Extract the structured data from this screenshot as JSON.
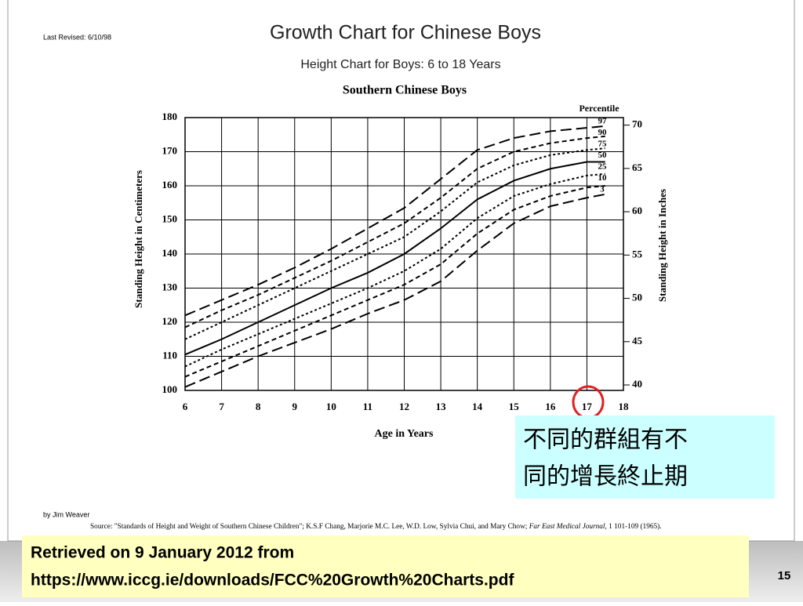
{
  "slide": {
    "revised": "Last Revised: 6/10/98",
    "author": "by Jim Weaver",
    "source_parts": [
      "Source: \"Standards of Height and Weight of Southern Chinese Children\"; K.S.F Chang, Marjorie M.C. Lee, W.D. Low, Sylvia Chui, and Mary Chow; ",
      "Far East Medical Journal,",
      " 1 101-109 (1965)."
    ],
    "callout": [
      "不同的群組有不",
      "同的增長終止期"
    ],
    "retrieved": [
      "Retrieved on 9 January 2012 from",
      "https://www.iccg.ie/downloads/FCC%20Growth%20Charts.pdf"
    ],
    "page_number": "15"
  },
  "chart_data": {
    "type": "line",
    "title": "Growth Chart for Chinese Boys",
    "subtitle": "Height Chart for Boys: 6 to 18 Years",
    "chart_title": "Southern Chinese Boys",
    "x_label": "Age in Years",
    "y_label": "Standing Height in Centimeters",
    "y2_label": "Standing Height in Inches",
    "legend_title": "Percentile",
    "x": [
      6,
      7,
      8,
      9,
      10,
      11,
      12,
      13,
      14,
      15,
      16,
      17,
      17.5
    ],
    "series": [
      {
        "name": "97",
        "color": "#000000",
        "dash": "14 6",
        "values": [
          122,
          126.5,
          131,
          136,
          141.5,
          147.5,
          153.5,
          162,
          170.5,
          174,
          176,
          177,
          177.5
        ]
      },
      {
        "name": "90",
        "color": "#000000",
        "dash": "6 4",
        "values": [
          118.5,
          123.5,
          128,
          133,
          138,
          143.5,
          149,
          156.5,
          165,
          170,
          172.5,
          174,
          174.5
        ]
      },
      {
        "name": "75",
        "color": "#000000",
        "dash": "3 3",
        "values": [
          115,
          120,
          125,
          130,
          135,
          140,
          145,
          152.5,
          161,
          166,
          169,
          170.5,
          171
        ]
      },
      {
        "name": "50",
        "color": "#000000",
        "dash": "none",
        "values": [
          110.5,
          115,
          120,
          125,
          130,
          134.5,
          140,
          147.5,
          156,
          161.5,
          165,
          167,
          167
        ]
      },
      {
        "name": "25",
        "color": "#000000",
        "dash": "3 3",
        "values": [
          107,
          112,
          116.5,
          121,
          125.5,
          130,
          135,
          141.5,
          150.5,
          157,
          160.5,
          163,
          163.5
        ]
      },
      {
        "name": "10",
        "color": "#000000",
        "dash": "6 4",
        "values": [
          104,
          108.5,
          113,
          117.5,
          122,
          126.5,
          131,
          137,
          146,
          153,
          157,
          159.5,
          160
        ]
      },
      {
        "name": "3",
        "color": "#000000",
        "dash": "14 6",
        "values": [
          101,
          105.5,
          110,
          114,
          118,
          122.5,
          126.5,
          132,
          141,
          149,
          154,
          156.5,
          157.5
        ]
      }
    ],
    "xlim": [
      6,
      18
    ],
    "xticks": [
      6,
      7,
      8,
      9,
      10,
      11,
      12,
      13,
      14,
      15,
      16,
      17,
      18
    ],
    "ylim": [
      100,
      180
    ],
    "yticks": [
      100,
      110,
      120,
      130,
      140,
      150,
      160,
      170,
      180
    ],
    "y2lim": [
      39.37,
      70.87
    ],
    "y2ticks": [
      40,
      45,
      50,
      55,
      60,
      65,
      70
    ],
    "grid": true
  }
}
